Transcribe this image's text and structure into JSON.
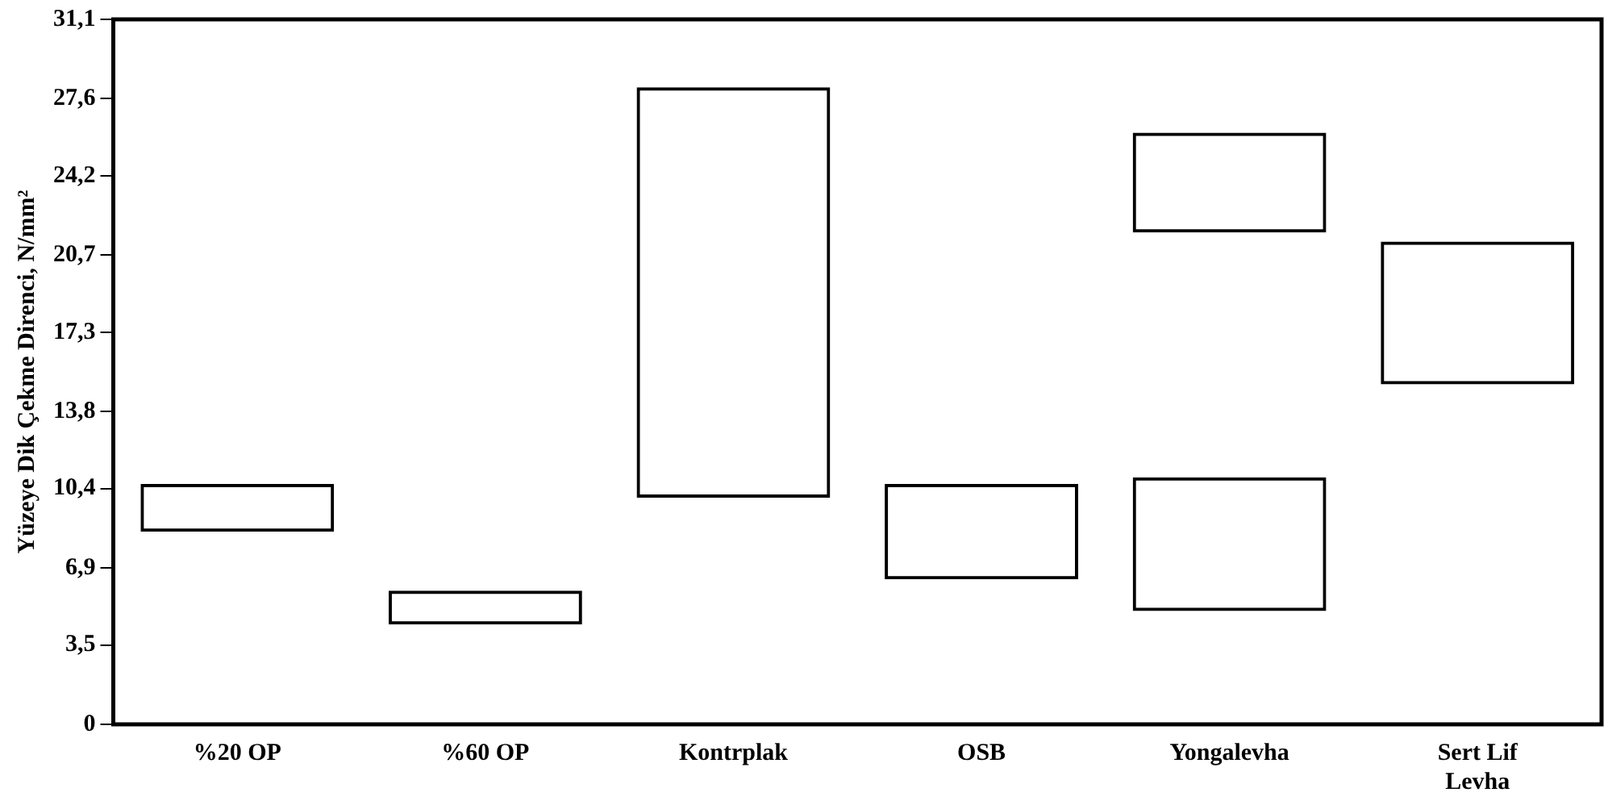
{
  "chart_data": {
    "type": "bar",
    "ylabel": "Yüzeye Dik Çekme Direnci, N/mm²",
    "categories": [
      "%20 OP",
      "%60 OP",
      "Kontrplak",
      "OSB",
      "Yongalevha",
      "Sert Lif Levha"
    ],
    "series": [
      {
        "color": "#000000",
        "base": [
          8.5,
          4.4,
          10.0,
          6.4,
          5.0,
          15.0
        ],
        "values": [
          2.1,
          1.5,
          18.1,
          4.2,
          5.9,
          6.3
        ]
      },
      {
        "color": "#000000",
        "base": [
          null,
          null,
          null,
          null,
          21.7,
          null
        ],
        "values": [
          null,
          null,
          null,
          null,
          4.4,
          null
        ]
      }
    ],
    "ylim": [
      0,
      31.1
    ],
    "yticks": [
      0,
      {
        "value": 3.5,
        "label": "3,5"
      },
      {
        "value": 6.9,
        "label": "6,9"
      },
      {
        "value": 10.4,
        "label": "10,4"
      },
      {
        "value": 13.8,
        "label": "13,8"
      },
      {
        "value": 17.3,
        "label": "17,3"
      },
      {
        "value": 20.7,
        "label": "20,7"
      },
      {
        "value": 24.2,
        "label": "24,2"
      },
      {
        "value": 27.6,
        "label": "27,6"
      },
      {
        "value": 31.1,
        "label": "31,1"
      }
    ],
    "grid": false,
    "legend": false
  }
}
